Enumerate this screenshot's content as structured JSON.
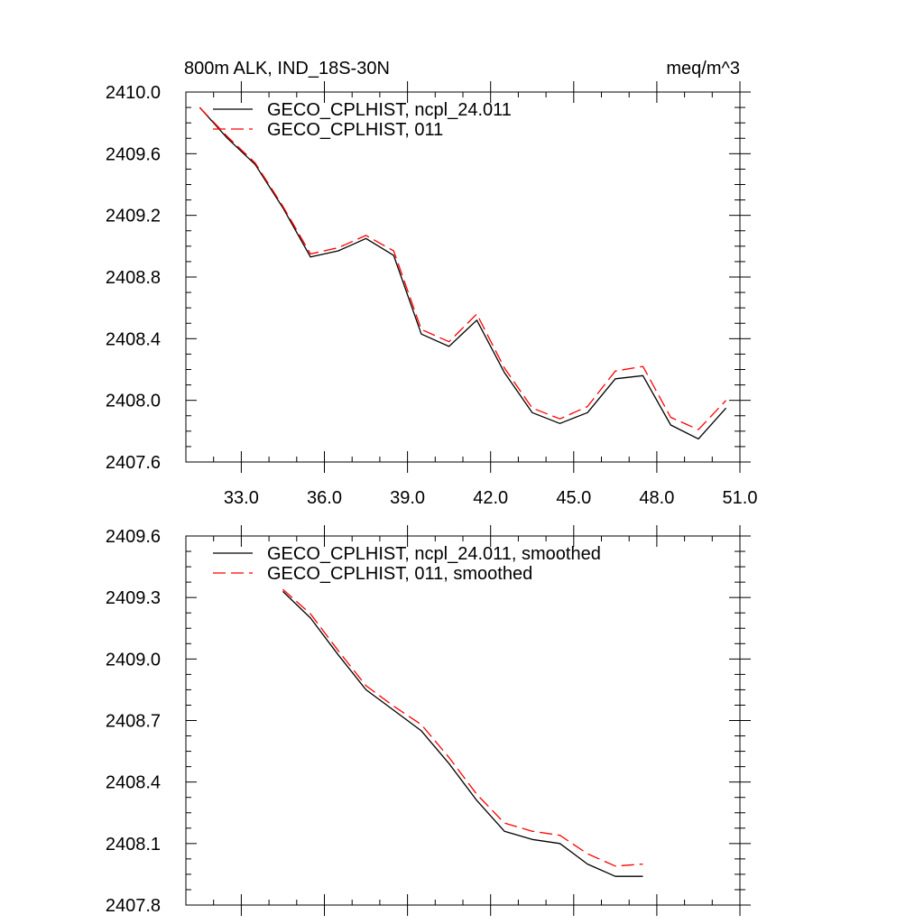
{
  "chart_data": [
    {
      "type": "line",
      "title_left": "800m ALK, IND_18S-30N",
      "title_right": "meq/m^3",
      "xlabel": "",
      "ylabel": "",
      "xlim": [
        31.0,
        51.0
      ],
      "ylim": [
        2407.6,
        2410.0
      ],
      "xticks": [
        33.0,
        36.0,
        39.0,
        42.0,
        45.0,
        48.0,
        51.0
      ],
      "xtick_labels": [
        "33.0",
        "36.0",
        "39.0",
        "42.0",
        "45.0",
        "48.0",
        "51.0"
      ],
      "yticks": [
        2407.6,
        2408.0,
        2408.4,
        2408.8,
        2409.2,
        2409.6,
        2410.0
      ],
      "ytick_labels": [
        "2407.6",
        "2408.0",
        "2408.4",
        "2408.8",
        "2409.2",
        "2409.6",
        "2410.0"
      ],
      "legend_position": "top-left",
      "series": [
        {
          "name": "GECO_CPLHIST, ncpl_24.011",
          "color": "#000000",
          "dash": "solid",
          "x": [
            31.5,
            32.5,
            33.5,
            34.5,
            35.5,
            36.5,
            37.5,
            38.5,
            39.5,
            40.5,
            41.5,
            42.5,
            43.5,
            44.5,
            45.5,
            46.5,
            47.5,
            48.5,
            49.5,
            50.5
          ],
          "y": [
            2409.9,
            2409.7,
            2409.53,
            2409.25,
            2408.93,
            2408.97,
            2409.05,
            2408.94,
            2408.43,
            2408.35,
            2408.52,
            2408.18,
            2407.92,
            2407.85,
            2407.92,
            2408.14,
            2408.16,
            2407.84,
            2407.75,
            2407.95
          ]
        },
        {
          "name": "GECO_CPLHIST, 011",
          "color": "#ff0000",
          "dash": "dashed",
          "x": [
            31.5,
            32.5,
            33.5,
            34.5,
            35.5,
            36.5,
            37.5,
            38.5,
            39.5,
            40.5,
            41.5,
            42.5,
            43.5,
            44.5,
            45.5,
            46.5,
            47.5,
            48.5,
            49.5,
            50.5
          ],
          "y": [
            2409.9,
            2409.71,
            2409.54,
            2409.26,
            2408.95,
            2408.99,
            2409.07,
            2408.97,
            2408.46,
            2408.38,
            2408.56,
            2408.21,
            2407.95,
            2407.88,
            2407.96,
            2408.19,
            2408.22,
            2407.89,
            2407.81,
            2408.0
          ]
        }
      ]
    },
    {
      "type": "line",
      "xlabel": "",
      "ylabel": "",
      "xlim": [
        31.0,
        51.0
      ],
      "ylim": [
        2407.8,
        2409.6
      ],
      "xticks": [
        33.0,
        36.0,
        39.0,
        42.0,
        45.0,
        48.0,
        51.0
      ],
      "yticks": [
        2407.8,
        2408.1,
        2408.4,
        2408.7,
        2409.0,
        2409.3,
        2409.6
      ],
      "ytick_labels": [
        "2407.8",
        "2408.1",
        "2408.4",
        "2408.7",
        "2409.0",
        "2409.3",
        "2409.6"
      ],
      "legend_position": "top-left",
      "series": [
        {
          "name": "GECO_CPLHIST, ncpl_24.011, smoothed",
          "color": "#000000",
          "dash": "solid",
          "x": [
            34.5,
            35.5,
            36.5,
            37.5,
            38.5,
            39.5,
            40.5,
            41.5,
            42.5,
            43.5,
            44.5,
            45.5,
            46.5,
            47.5
          ],
          "y": [
            2409.33,
            2409.2,
            2409.02,
            2408.85,
            2408.75,
            2408.65,
            2408.49,
            2408.31,
            2408.16,
            2408.12,
            2408.1,
            2408.0,
            2407.94,
            2407.94
          ]
        },
        {
          "name": "GECO_CPLHIST, 011, smoothed",
          "color": "#ff0000",
          "dash": "dashed",
          "x": [
            34.5,
            35.5,
            36.5,
            37.5,
            38.5,
            39.5,
            40.5,
            41.5,
            42.5,
            43.5,
            44.5,
            45.5,
            46.5,
            47.5
          ],
          "y": [
            2409.34,
            2409.22,
            2409.04,
            2408.87,
            2408.77,
            2408.68,
            2408.52,
            2408.34,
            2408.2,
            2408.16,
            2408.14,
            2408.05,
            2407.99,
            2408.0
          ]
        }
      ]
    }
  ]
}
